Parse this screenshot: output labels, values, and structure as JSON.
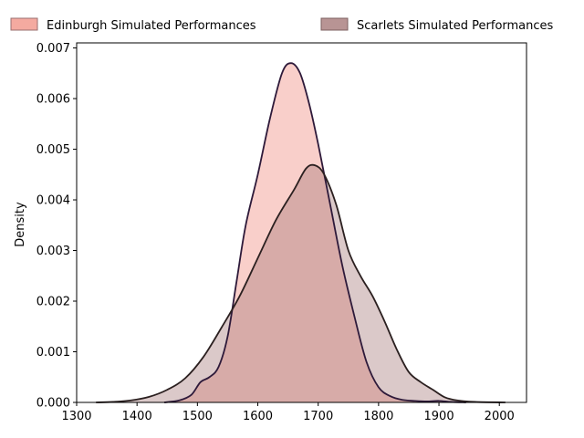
{
  "chart_data": {
    "type": "area",
    "title": "",
    "xlabel": "",
    "ylabel": "Density",
    "xlim": [
      1300,
      2045
    ],
    "ylim": [
      0,
      0.0071
    ],
    "x_ticks": [
      1300,
      1400,
      1500,
      1600,
      1700,
      1800,
      1900,
      2000
    ],
    "y_ticks": [
      0.0,
      0.001,
      0.002,
      0.003,
      0.004,
      0.005,
      0.006,
      0.007
    ],
    "x_tick_labels": [
      "1300",
      "1400",
      "1500",
      "1600",
      "1700",
      "1800",
      "1900",
      "2000"
    ],
    "y_tick_labels": [
      "0.000",
      "0.001",
      "0.002",
      "0.003",
      "0.004",
      "0.005",
      "0.006",
      "0.007"
    ],
    "grid": false,
    "legend_position": "top",
    "series": [
      {
        "name": "Edinburgh Simulated Performances",
        "fill_color": "#f08d80",
        "line_color": "#2e1a3a",
        "points": [
          [
            1445,
            0.0
          ],
          [
            1470,
            4e-05
          ],
          [
            1490,
            0.00015
          ],
          [
            1505,
            0.0004
          ],
          [
            1520,
            0.0005
          ],
          [
            1535,
            0.0007
          ],
          [
            1550,
            0.0013
          ],
          [
            1565,
            0.0024
          ],
          [
            1580,
            0.0035
          ],
          [
            1600,
            0.0045
          ],
          [
            1620,
            0.0056
          ],
          [
            1640,
            0.0065
          ],
          [
            1655,
            0.0067
          ],
          [
            1670,
            0.0065
          ],
          [
            1685,
            0.0059
          ],
          [
            1700,
            0.0051
          ],
          [
            1720,
            0.0039
          ],
          [
            1740,
            0.0027
          ],
          [
            1760,
            0.0017
          ],
          [
            1780,
            0.0008
          ],
          [
            1800,
            0.0003
          ],
          [
            1820,
            0.00012
          ],
          [
            1840,
            5e-05
          ],
          [
            1860,
            3e-05
          ],
          [
            1880,
            2e-05
          ],
          [
            1900,
            3e-05
          ],
          [
            1920,
            1e-05
          ],
          [
            1945,
            0.0
          ]
        ]
      },
      {
        "name": "Scarlets Simulated Performances",
        "fill_color": "#a07070",
        "line_color": "#2b2020",
        "points": [
          [
            1332,
            0.0
          ],
          [
            1360,
            1e-05
          ],
          [
            1390,
            4e-05
          ],
          [
            1420,
            0.00011
          ],
          [
            1450,
            0.00025
          ],
          [
            1480,
            0.00048
          ],
          [
            1510,
            0.0009
          ],
          [
            1540,
            0.00148
          ],
          [
            1570,
            0.0021
          ],
          [
            1600,
            0.00285
          ],
          [
            1630,
            0.0036
          ],
          [
            1660,
            0.0042
          ],
          [
            1680,
            0.00462
          ],
          [
            1695,
            0.00468
          ],
          [
            1710,
            0.0045
          ],
          [
            1730,
            0.0039
          ],
          [
            1750,
            0.003
          ],
          [
            1770,
            0.0025
          ],
          [
            1790,
            0.0021
          ],
          [
            1810,
            0.0016
          ],
          [
            1830,
            0.00105
          ],
          [
            1850,
            0.0006
          ],
          [
            1870,
            0.0004
          ],
          [
            1890,
            0.00025
          ],
          [
            1910,
            0.0001
          ],
          [
            1930,
            4e-05
          ],
          [
            1960,
            1e-05
          ],
          [
            2010,
            0.0
          ]
        ]
      }
    ]
  }
}
